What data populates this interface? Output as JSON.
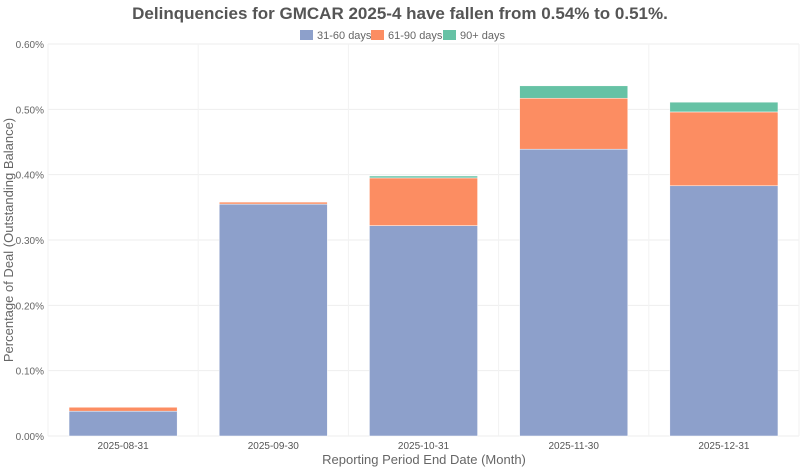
{
  "chart_data": {
    "type": "bar",
    "stacked": true,
    "title": "Delinquencies for GMCAR 2025-4 have fallen from 0.54% to 0.51%.",
    "xlabel": "Reporting Period End Date (Month)",
    "ylabel": "Percentage of Deal (Outstanding Balance)",
    "ylim": [
      0,
      0.6
    ],
    "yticks": [
      0,
      0.1,
      0.2,
      0.3,
      0.4,
      0.5,
      0.6
    ],
    "ytick_labels": [
      "0.00%",
      "0.10%",
      "0.20%",
      "0.30%",
      "0.40%",
      "0.50%",
      "0.60%"
    ],
    "grid": true,
    "legend_position": "top-center",
    "categories": [
      "2025-08-31",
      "2025-09-30",
      "2025-10-31",
      "2025-11-30",
      "2025-12-31"
    ],
    "series": [
      {
        "name": "31-60 days",
        "color": "#8da0cb",
        "values": [
          0.038,
          0.355,
          0.322,
          0.439,
          0.383
        ]
      },
      {
        "name": "61-90 days",
        "color": "#fc8d62",
        "values": [
          0.006,
          0.003,
          0.073,
          0.078,
          0.113
        ]
      },
      {
        "name": "90+ days",
        "color": "#66c2a5",
        "values": [
          0.0,
          0.0,
          0.003,
          0.019,
          0.015
        ]
      }
    ]
  }
}
